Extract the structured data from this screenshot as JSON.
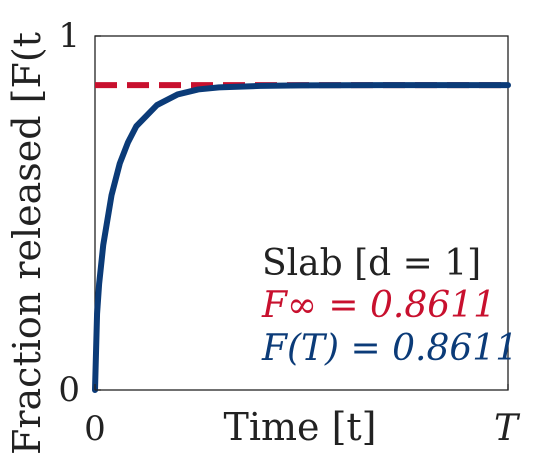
{
  "chart_data": {
    "type": "line",
    "title": "",
    "xlabel": "Time [t]",
    "ylabel": "Fraction released [F(t",
    "xlim": [
      0,
      1
    ],
    "ylim": [
      0,
      1
    ],
    "x_ticks": [
      {
        "value": 0,
        "label": "0",
        "italic": false
      },
      {
        "value": 1,
        "label": "T",
        "italic": true
      }
    ],
    "y_ticks": [
      {
        "value": 0,
        "label": "0"
      },
      {
        "value": 1,
        "label": "1"
      }
    ],
    "grid": false,
    "series": [
      {
        "name": "F(t)",
        "color": "#0b3b78",
        "style": "solid",
        "x": [
          0,
          0.005,
          0.01,
          0.02,
          0.04,
          0.06,
          0.08,
          0.1,
          0.15,
          0.2,
          0.25,
          0.3,
          0.4,
          0.5,
          0.6,
          0.7,
          0.8,
          0.9,
          1.0
        ],
        "y": [
          0,
          0.215,
          0.3,
          0.41,
          0.55,
          0.64,
          0.7,
          0.745,
          0.805,
          0.835,
          0.849,
          0.855,
          0.859,
          0.8605,
          0.861,
          0.8611,
          0.8611,
          0.8611,
          0.8611
        ]
      },
      {
        "name": "F_inf",
        "color": "#c8102e",
        "style": "dashed",
        "x": [
          0,
          1
        ],
        "y": [
          0.8611,
          0.8611
        ]
      }
    ],
    "annotations": {
      "case": "Slab [d = 1]",
      "finf_label": "F∞ = 0.8611",
      "ft_label": "F(T) = 0.8611"
    },
    "colors": {
      "finf": "#c8102e",
      "ft": "#0b3b78",
      "text": "#222222"
    }
  }
}
